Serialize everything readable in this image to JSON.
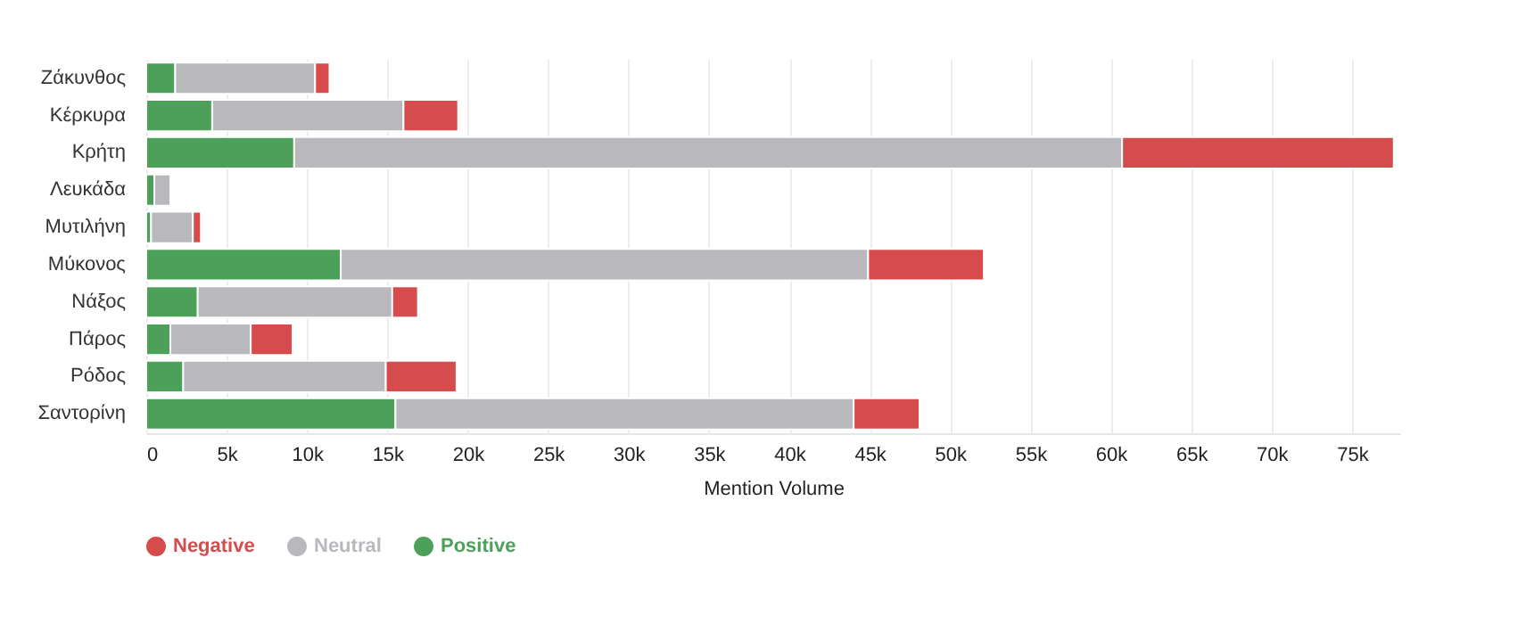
{
  "chart_data": {
    "type": "bar",
    "orientation": "horizontal",
    "stacked": true,
    "xlabel": "Mention Volume",
    "categories": [
      "Ζάκυνθος",
      "Κέρκυρα",
      "Κρήτη",
      "Λευκάδα",
      "Μυτιλήνη",
      "Μύκονος",
      "Νάξος",
      "Πάρος",
      "Ρόδος",
      "Σαντορίνη"
    ],
    "series": [
      {
        "name": "Positive",
        "color": "#4ca05a",
        "values": [
          1800,
          4100,
          9200,
          500,
          300,
          12100,
          3200,
          1500,
          2300,
          15500
        ]
      },
      {
        "name": "Neutral",
        "color": "#b9b8bd",
        "values": [
          8700,
          11900,
          51500,
          1000,
          2600,
          32800,
          12100,
          5000,
          12600,
          28500
        ]
      },
      {
        "name": "Negative",
        "color": "#d64b4b",
        "values": [
          900,
          3400,
          16900,
          null,
          500,
          7200,
          1600,
          2600,
          4400,
          4100
        ]
      }
    ],
    "xlim": [
      0,
      78000
    ],
    "xticks": [
      0,
      {
        "value": 5000,
        "label": "5k"
      },
      {
        "value": 10000,
        "label": "10k"
      },
      {
        "value": 15000,
        "label": "15k"
      },
      {
        "value": 20000,
        "label": "20k"
      },
      {
        "value": 25000,
        "label": "25k"
      },
      {
        "value": 30000,
        "label": "30k"
      },
      {
        "value": 35000,
        "label": "35k"
      },
      {
        "value": 40000,
        "label": "40k"
      },
      {
        "value": 45000,
        "label": "45k"
      },
      {
        "value": 50000,
        "label": "50k"
      },
      {
        "value": 55000,
        "label": "55k"
      },
      {
        "value": 60000,
        "label": "60k"
      },
      {
        "value": 65000,
        "label": "65k"
      },
      {
        "value": 70000,
        "label": "70k"
      },
      {
        "value": 75000,
        "label": "75k"
      }
    ],
    "grid": "x",
    "legend": "bottom"
  }
}
